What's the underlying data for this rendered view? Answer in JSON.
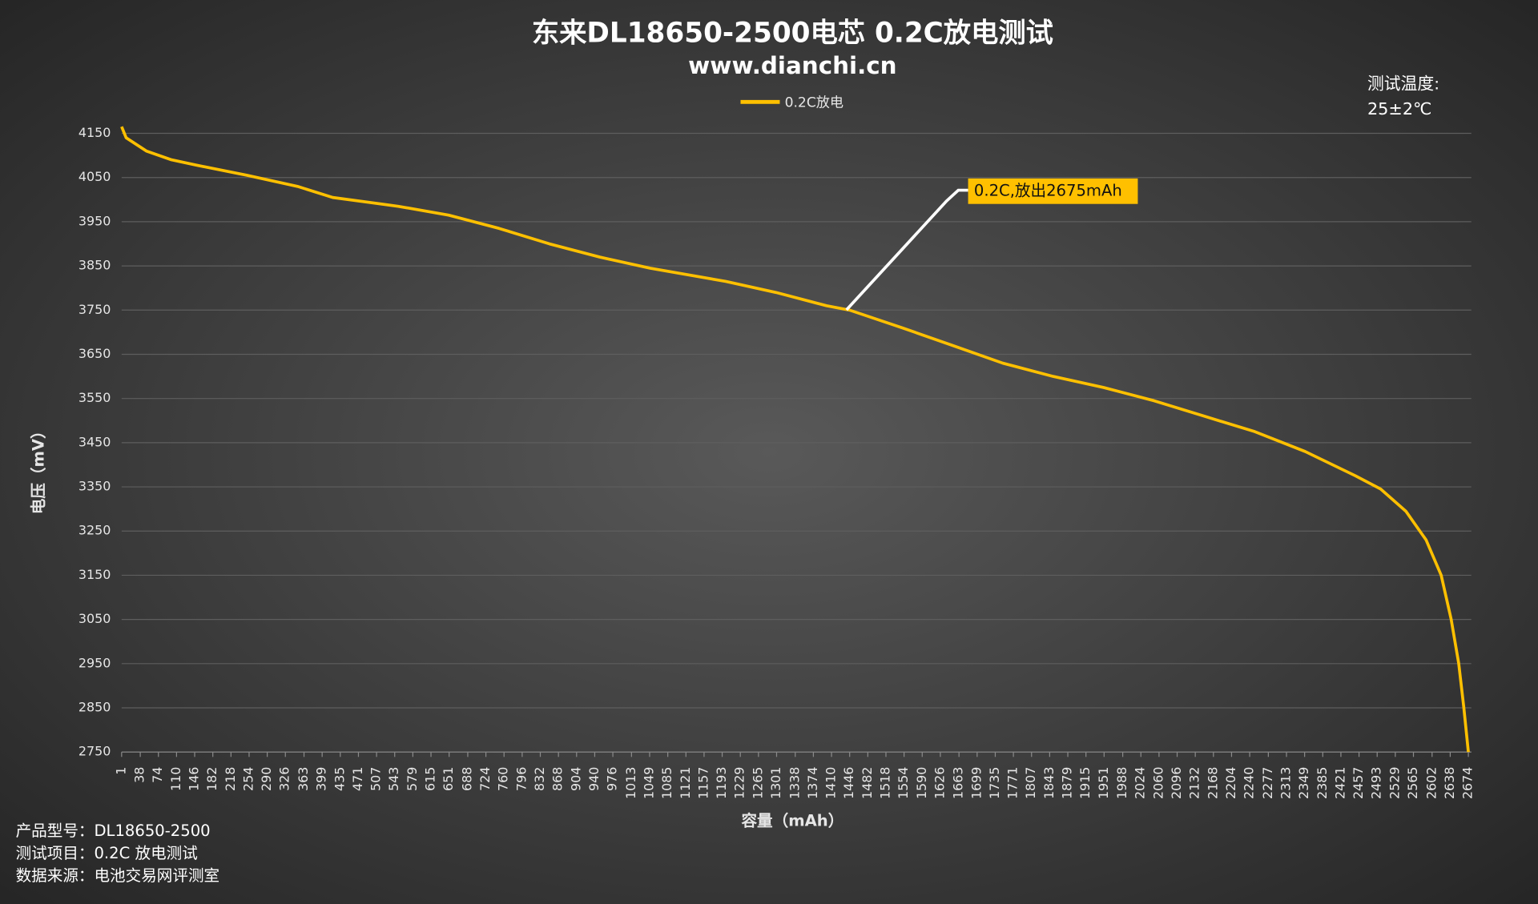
{
  "chart_data": {
    "type": "line",
    "title": "东来DL18650-2500电芯 0.2C放电测试",
    "subtitle": "www.dianchi.cn",
    "x_label": "容量（mAh）",
    "y_label": "电压（mV）",
    "annotation": "0.2C,放出2675mAh",
    "temperature_label": "测试温度:",
    "temperature_value": "25±2℃",
    "notes": [
      "产品型号：DL18650-2500",
      "测试项目：0.2C 放电测试",
      "数据来源：电池交易网评测室"
    ],
    "x": [
      1,
      10,
      50,
      100,
      150,
      250,
      350,
      420,
      550,
      650,
      750,
      850,
      950,
      1050,
      1200,
      1300,
      1400,
      1446,
      1550,
      1650,
      1750,
      1850,
      1950,
      2050,
      2150,
      2250,
      2350,
      2450,
      2500,
      2550,
      2590,
      2620,
      2640,
      2655,
      2665,
      2674
    ],
    "series": [
      {
        "name": "0.2C放电",
        "color": "#ffc000",
        "values": [
          4165,
          4140,
          4110,
          4090,
          4078,
          4055,
          4030,
          4005,
          3985,
          3965,
          3935,
          3900,
          3870,
          3845,
          3815,
          3790,
          3760,
          3750,
          3710,
          3670,
          3630,
          3600,
          3575,
          3545,
          3510,
          3475,
          3430,
          3375,
          3345,
          3295,
          3230,
          3150,
          3050,
          2950,
          2850,
          2750
        ]
      }
    ],
    "xlim": [
      1,
      2674
    ],
    "xticks": [
      1,
      38,
      74,
      110,
      146,
      182,
      218,
      254,
      290,
      326,
      363,
      399,
      435,
      471,
      507,
      543,
      579,
      615,
      651,
      688,
      724,
      760,
      796,
      832,
      868,
      904,
      940,
      976,
      1013,
      1049,
      1085,
      1121,
      1157,
      1193,
      1229,
      1265,
      1301,
      1338,
      1374,
      1410,
      1446,
      1482,
      1518,
      1554,
      1590,
      1626,
      1663,
      1699,
      1735,
      1771,
      1807,
      1843,
      1879,
      1915,
      1951,
      1988,
      2024,
      2060,
      2096,
      2132,
      2168,
      2204,
      2240,
      2277,
      2313,
      2349,
      2385,
      2421,
      2457,
      2493,
      2529,
      2565,
      2602,
      2638,
      2674
    ],
    "ylim": [
      2750,
      4150
    ],
    "yticks": [
      4150,
      4050,
      3950,
      3850,
      3750,
      3650,
      3550,
      3450,
      3350,
      3250,
      3150,
      3050,
      2950,
      2850,
      2750
    ],
    "grid": true,
    "legend": "top"
  }
}
